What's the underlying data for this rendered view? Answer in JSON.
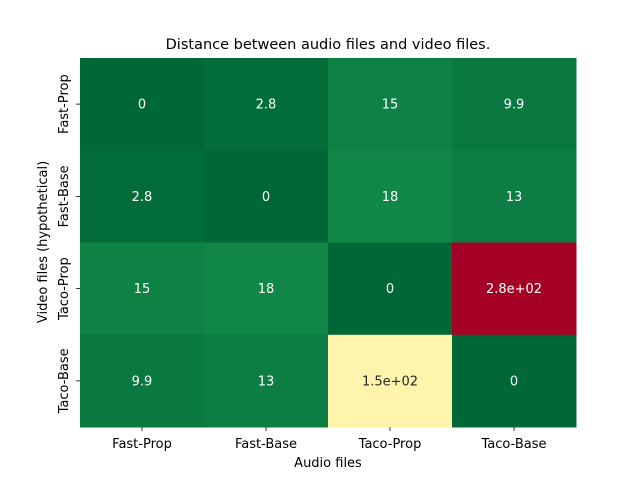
{
  "chart_data": {
    "type": "heatmap",
    "title": "Distance between audio files and video files.",
    "xlabel": "Audio files",
    "ylabel": "Video files (hypothetical)",
    "x_categories": [
      "Fast-Prop",
      "Fast-Base",
      "Taco-Prop",
      "Taco-Base"
    ],
    "y_categories": [
      "Fast-Prop",
      "Fast-Base",
      "Taco-Prop",
      "Taco-Base"
    ],
    "values": [
      [
        0,
        2.8,
        15,
        9.9
      ],
      [
        2.8,
        0,
        18,
        13
      ],
      [
        15,
        18,
        0,
        280
      ],
      [
        9.9,
        13,
        150,
        0
      ]
    ],
    "labels": [
      [
        "0",
        "2.8",
        "15",
        "9.9"
      ],
      [
        "2.8",
        "0",
        "18",
        "13"
      ],
      [
        "15",
        "18",
        "0",
        "2.8e+02"
      ],
      [
        "9.9",
        "13",
        "1.5e+02",
        "0"
      ]
    ],
    "colormap": "RdYlGn_r",
    "vmin": 0,
    "vmax": 280,
    "colorbar": false
  }
}
